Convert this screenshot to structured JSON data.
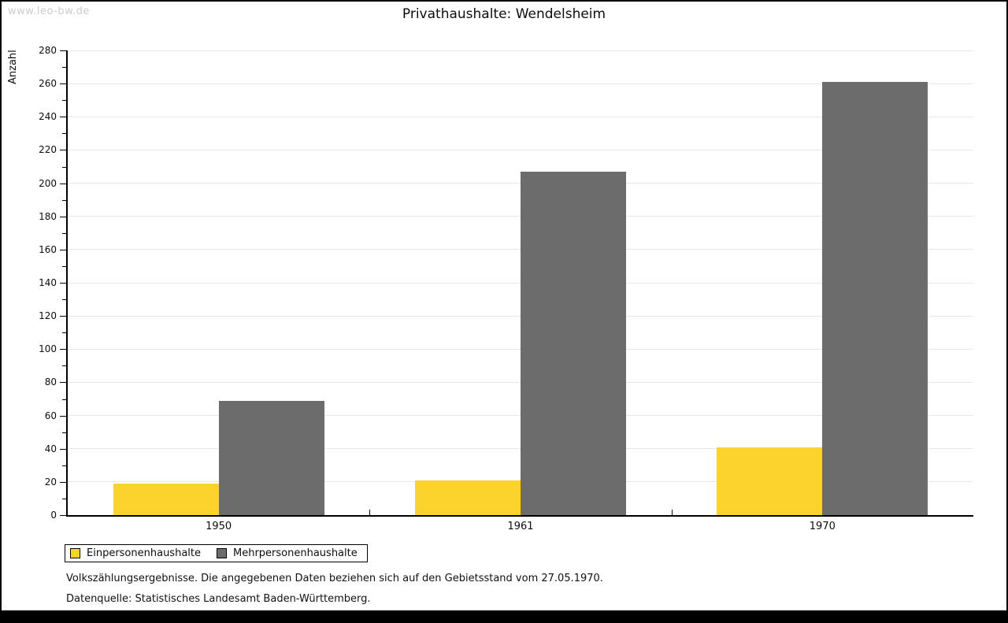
{
  "watermark": "www.leo-bw.de",
  "title": "Privathaushalte: Wendelsheim",
  "chart_data": {
    "type": "bar",
    "title": "Privathaushalte: Wendelsheim",
    "categories": [
      "1950",
      "1961",
      "1970"
    ],
    "series": [
      {
        "name": "Einpersonenhaushalte",
        "color": "#FCD32D",
        "values": [
          19,
          21,
          41
        ]
      },
      {
        "name": "Mehrpersonenhaushalte",
        "color": "#6C6C6C",
        "values": [
          69,
          207,
          261
        ]
      }
    ],
    "xlabel": "",
    "ylabel": "Anzahl",
    "ylim": [
      0,
      280
    ],
    "ytick_step": 20,
    "yminor_step": 10,
    "grid": true,
    "grid_color": "#E8E8E8",
    "axis_color": "#000000",
    "legend_position": "bottom-left"
  },
  "footer": {
    "line1": "Volkszählungsergebnisse. Die angegebenen Daten beziehen sich auf den Gebietsstand vom 27.05.1970.",
    "line2": "Datenquelle: Statistisches Landesamt Baden-Württemberg."
  }
}
